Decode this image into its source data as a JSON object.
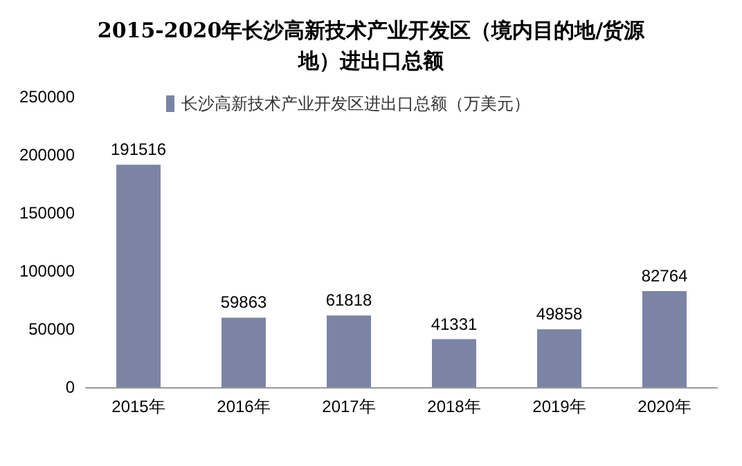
{
  "chart_data": {
    "type": "bar",
    "title": "2015-2020年长沙高新技术产业开发区（境内目的地/货源地）进出口总额",
    "categories": [
      "2015年",
      "2016年",
      "2017年",
      "2018年",
      "2019年",
      "2020年"
    ],
    "series": [
      {
        "name": "长沙高新技术产业开发区进出口总额（万美元）",
        "color": "#7c84a6",
        "values": [
          191516,
          59863,
          61818,
          41331,
          49858,
          82764
        ]
      }
    ],
    "ylim": [
      0,
      250000
    ],
    "yticks": [
      0,
      50000,
      100000,
      150000,
      200000,
      250000
    ],
    "grid": false,
    "legend": "top left",
    "data_labels": true
  }
}
